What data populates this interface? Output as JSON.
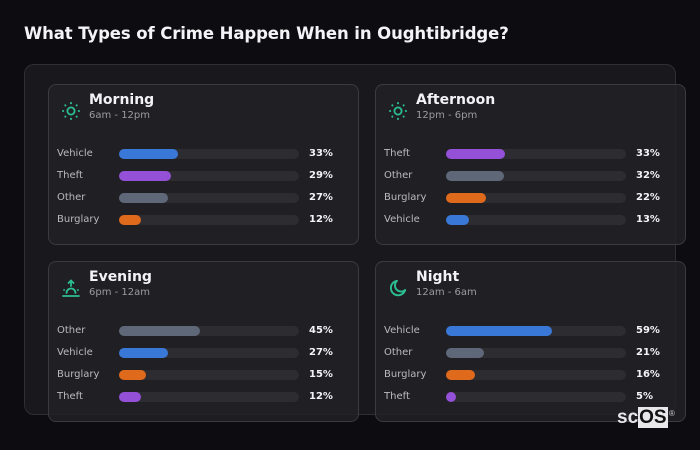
{
  "header": {
    "title": "What Types of Crime Happen When in Oughtibridge?"
  },
  "colors": {
    "Vehicle": "#3a78d8",
    "Theft": "#9450d6",
    "Other": "#5f6878",
    "Burglary": "#e06a1c",
    "icon": "#2bbf8e"
  },
  "cards": [
    {
      "title": "Morning",
      "subtitle": "6am - 12pm",
      "icon": "sun-icon",
      "rows": [
        {
          "label": "Vehicle",
          "pct": "33%",
          "value": 33
        },
        {
          "label": "Theft",
          "pct": "29%",
          "value": 29
        },
        {
          "label": "Other",
          "pct": "27%",
          "value": 27
        },
        {
          "label": "Burglary",
          "pct": "12%",
          "value": 12
        }
      ]
    },
    {
      "title": "Afternoon",
      "subtitle": "12pm - 6pm",
      "icon": "sun-icon",
      "rows": [
        {
          "label": "Theft",
          "pct": "33%",
          "value": 33
        },
        {
          "label": "Other",
          "pct": "32%",
          "value": 32
        },
        {
          "label": "Burglary",
          "pct": "22%",
          "value": 22
        },
        {
          "label": "Vehicle",
          "pct": "13%",
          "value": 13
        }
      ]
    },
    {
      "title": "Evening",
      "subtitle": "6pm - 12am",
      "icon": "sunset-icon",
      "rows": [
        {
          "label": "Other",
          "pct": "45%",
          "value": 45
        },
        {
          "label": "Vehicle",
          "pct": "27%",
          "value": 27
        },
        {
          "label": "Burglary",
          "pct": "15%",
          "value": 15
        },
        {
          "label": "Theft",
          "pct": "12%",
          "value": 12
        }
      ]
    },
    {
      "title": "Night",
      "subtitle": "12am - 6am",
      "icon": "moon-icon",
      "rows": [
        {
          "label": "Vehicle",
          "pct": "59%",
          "value": 59
        },
        {
          "label": "Other",
          "pct": "21%",
          "value": 21
        },
        {
          "label": "Burglary",
          "pct": "16%",
          "value": 16
        },
        {
          "label": "Theft",
          "pct": "5%",
          "value": 5
        }
      ]
    }
  ],
  "logo": {
    "text_a": "sc",
    "text_b": "OS",
    "reg": "®"
  },
  "chart_data": [
    {
      "type": "bar",
      "title": "Morning",
      "subtitle": "6am - 12pm",
      "orientation": "horizontal",
      "categories": [
        "Vehicle",
        "Theft",
        "Other",
        "Burglary"
      ],
      "values": [
        33,
        29,
        27,
        12
      ],
      "unit": "%",
      "xlim": [
        0,
        100
      ]
    },
    {
      "type": "bar",
      "title": "Afternoon",
      "subtitle": "12pm - 6pm",
      "orientation": "horizontal",
      "categories": [
        "Theft",
        "Other",
        "Burglary",
        "Vehicle"
      ],
      "values": [
        33,
        32,
        22,
        13
      ],
      "unit": "%",
      "xlim": [
        0,
        100
      ]
    },
    {
      "type": "bar",
      "title": "Evening",
      "subtitle": "6pm - 12am",
      "orientation": "horizontal",
      "categories": [
        "Other",
        "Vehicle",
        "Burglary",
        "Theft"
      ],
      "values": [
        45,
        27,
        15,
        12
      ],
      "unit": "%",
      "xlim": [
        0,
        100
      ]
    },
    {
      "type": "bar",
      "title": "Night",
      "subtitle": "12am - 6am",
      "orientation": "horizontal",
      "categories": [
        "Vehicle",
        "Other",
        "Burglary",
        "Theft"
      ],
      "values": [
        59,
        21,
        16,
        5
      ],
      "unit": "%",
      "xlim": [
        0,
        100
      ]
    }
  ]
}
